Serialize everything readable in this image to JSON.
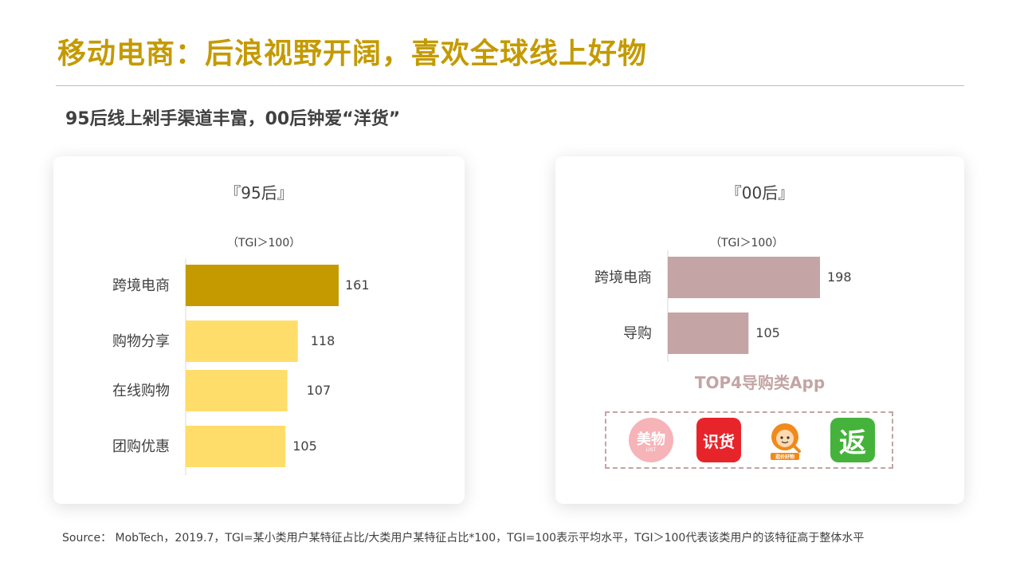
{
  "title": "移动电商：后浪视野开阔，喜欢全球线上好物",
  "subtitle": "95后线上剁手渠道丰富，00后钟爱“洋货”",
  "colors": {
    "title": "#c49a00",
    "bar_highlight": "#c49a00",
    "bar_light": "#ffdd6b",
    "bar_rose": "#c4a4a4"
  },
  "chart_data": [
    {
      "type": "bar",
      "orientation": "horizontal",
      "title": "『95后』",
      "note": "（TGI＞100）",
      "categories": [
        "跨境电商",
        "购物分享",
        "在线购物",
        "团购优惠"
      ],
      "values": [
        161,
        118,
        107,
        105
      ],
      "xlim": [
        0,
        161
      ]
    },
    {
      "type": "bar",
      "orientation": "horizontal",
      "title": "『00后』",
      "note": "（TGI＞100）",
      "categories": [
        "跨境电商",
        "导购"
      ],
      "values": [
        198,
        105
      ],
      "xlim": [
        0,
        198
      ]
    }
  ],
  "apps": {
    "heading": "TOP4导购类App",
    "items": [
      {
        "name": "meiwu-app-icon",
        "text": "美物",
        "sub": "LIST"
      },
      {
        "name": "shihuo-app-icon",
        "text": "识货"
      },
      {
        "name": "haojia-app-icon",
        "text": "逛价好物"
      },
      {
        "name": "fan-app-icon",
        "text": "返"
      }
    ]
  },
  "source": "Source： MobTech，2019.7，TGI=某小类用户某特征占比/大类用户某特征占比*100，TGI=100表示平均水平，TGI＞100代表该类用户的该特征高于整体水平"
}
